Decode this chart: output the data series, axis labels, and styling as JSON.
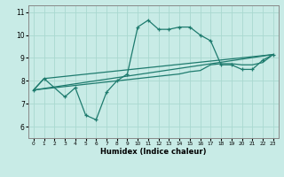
{
  "title": "",
  "xlabel": "Humidex (Indice chaleur)",
  "ylabel": "",
  "xlim": [
    -0.5,
    23.5
  ],
  "ylim": [
    5.5,
    11.3
  ],
  "xticks": [
    0,
    1,
    2,
    3,
    4,
    5,
    6,
    7,
    8,
    9,
    10,
    11,
    12,
    13,
    14,
    15,
    16,
    17,
    18,
    19,
    20,
    21,
    22,
    23
  ],
  "yticks": [
    6,
    7,
    8,
    9,
    10,
    11
  ],
  "bg_color": "#c8ebe6",
  "line_color": "#1e7b6e",
  "grid_color": "#aad8d0",
  "lines": [
    {
      "x": [
        0,
        1,
        3,
        4,
        5,
        6,
        7,
        8,
        9,
        10,
        11,
        12,
        13,
        14,
        15,
        16,
        17,
        18,
        19,
        20,
        21,
        22,
        23
      ],
      "y": [
        7.6,
        8.1,
        7.3,
        7.7,
        6.5,
        6.3,
        7.5,
        8.0,
        8.3,
        10.35,
        10.65,
        10.25,
        10.25,
        10.35,
        10.35,
        10.0,
        9.75,
        8.7,
        8.7,
        8.5,
        8.5,
        8.9,
        9.15
      ],
      "marker": "+"
    },
    {
      "x": [
        0,
        1,
        23
      ],
      "y": [
        7.6,
        8.1,
        9.15
      ],
      "marker": null
    },
    {
      "x": [
        0,
        23
      ],
      "y": [
        7.6,
        9.15
      ],
      "marker": null
    },
    {
      "x": [
        0,
        8,
        9,
        10,
        11,
        12,
        13,
        14,
        15,
        16,
        17,
        18,
        19,
        20,
        21,
        22,
        23
      ],
      "y": [
        7.6,
        8.0,
        8.05,
        8.1,
        8.15,
        8.2,
        8.25,
        8.3,
        8.4,
        8.45,
        8.7,
        8.75,
        8.75,
        8.7,
        8.7,
        8.8,
        9.15
      ],
      "marker": null
    }
  ]
}
